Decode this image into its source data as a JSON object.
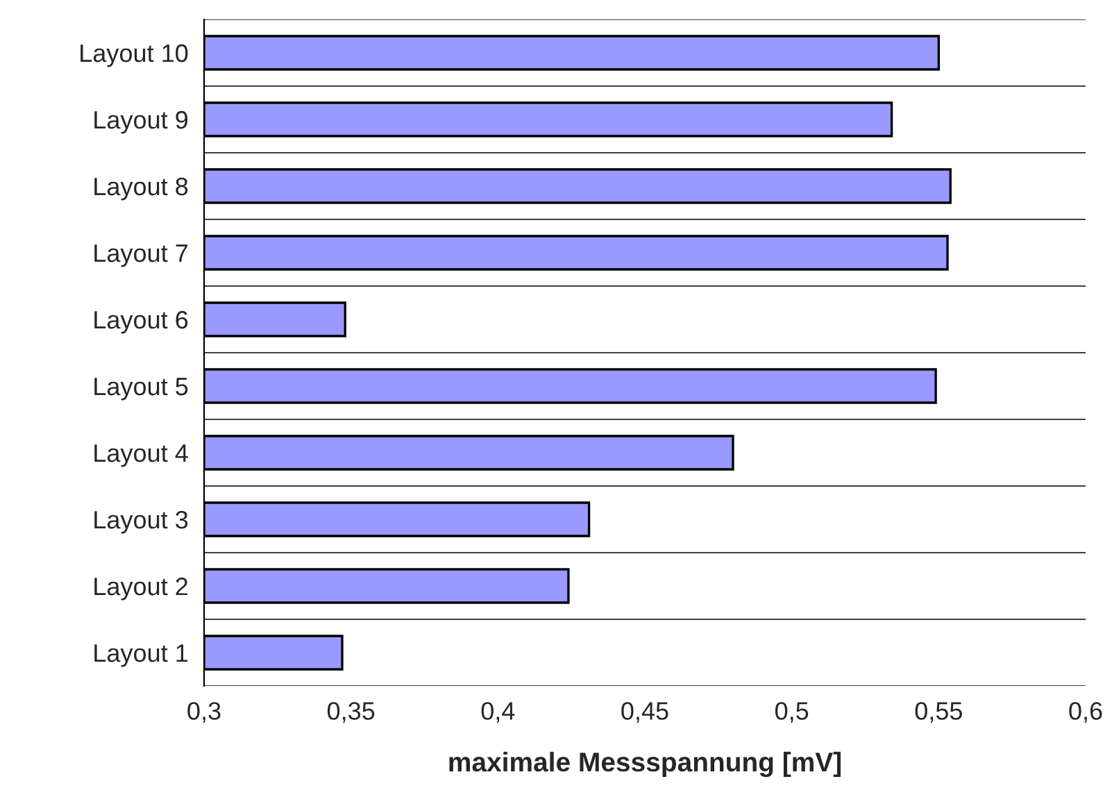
{
  "chart_data": {
    "type": "bar",
    "orientation": "horizontal",
    "xlabel": "maximale Messspannung [mV]",
    "categories": [
      "Layout 10",
      "Layout 9",
      "Layout 8",
      "Layout 7",
      "Layout 6",
      "Layout 5",
      "Layout 4",
      "Layout 3",
      "Layout 2",
      "Layout 1"
    ],
    "values": [
      0.55,
      0.534,
      0.554,
      0.553,
      0.348,
      0.549,
      0.48,
      0.431,
      0.424,
      0.347
    ],
    "color": "#9999ff",
    "xlim": [
      0.3,
      0.6
    ],
    "xticks": [
      {
        "value": 0.3,
        "label": "0,3"
      },
      {
        "value": 0.35,
        "label": "0,35"
      },
      {
        "value": 0.4,
        "label": "0,4"
      },
      {
        "value": 0.45,
        "label": "0,45"
      },
      {
        "value": 0.5,
        "label": "0,5"
      },
      {
        "value": 0.55,
        "label": "0,55"
      },
      {
        "value": 0.6,
        "label": "0,6"
      }
    ],
    "grid": "y"
  }
}
